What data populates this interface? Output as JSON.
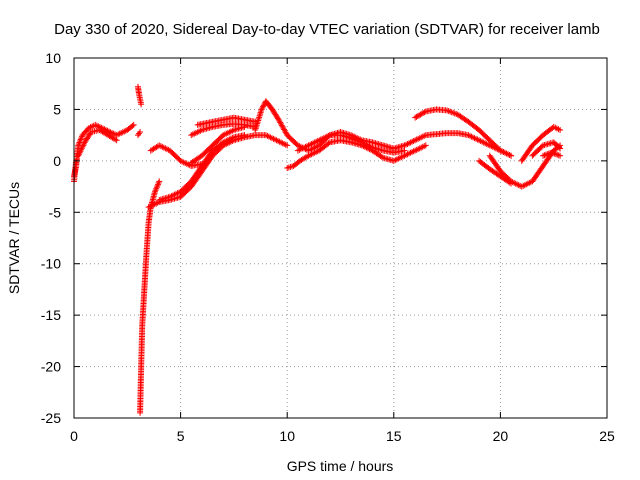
{
  "chart_data": {
    "type": "scatter",
    "title": "Day 330 of 2020, Sidereal Day-to-day VTEC variation (SDTVAR) for receiver lamb",
    "xlabel": "GPS time / hours",
    "ylabel": "SDTVAR / TECUs",
    "xlim": [
      0,
      25
    ],
    "ylim": [
      -25,
      10
    ],
    "xticks": [
      "0",
      "5",
      "10",
      "15",
      "20",
      "25"
    ],
    "yticks": [
      "10",
      "5",
      "0",
      "-5",
      "-10",
      "-15",
      "-20",
      "-25"
    ],
    "xtick_values": [
      0,
      5,
      10,
      15,
      20,
      25
    ],
    "ytick_values": [
      10,
      5,
      0,
      -5,
      -10,
      -15,
      -20,
      -25
    ],
    "grid": true,
    "marker": "+",
    "series": [
      {
        "name": "SDTVAR",
        "color": "#ff0000",
        "tracks": [
          [
            [
              0,
              -1.5
            ],
            [
              0.1,
              -0.5
            ],
            [
              0.2,
              1.5
            ],
            [
              0.4,
              2.5
            ],
            [
              0.7,
              3.2
            ],
            [
              1.0,
              3.5
            ],
            [
              1.5,
              3.0
            ],
            [
              2.0,
              2.5
            ],
            [
              2.5,
              3.0
            ],
            [
              2.8,
              3.5
            ]
          ],
          [
            [
              0.2,
              0.5
            ],
            [
              0.5,
              1.8
            ],
            [
              0.8,
              2.8
            ],
            [
              1.2,
              3.0
            ],
            [
              1.6,
              2.5
            ],
            [
              2.0,
              2.0
            ]
          ],
          [
            [
              0,
              -2.0
            ],
            [
              0.05,
              -1.0
            ],
            [
              0.1,
              0.0
            ]
          ],
          [
            [
              3.0,
              7.2
            ],
            [
              3.05,
              6.5
            ],
            [
              3.1,
              6.0
            ],
            [
              3.15,
              5.5
            ]
          ],
          [
            [
              3.0,
              2.5
            ],
            [
              3.1,
              2.8
            ]
          ],
          [
            [
              3.1,
              -24.5
            ],
            [
              3.15,
              -20.0
            ],
            [
              3.2,
              -16.0
            ],
            [
              3.3,
              -12.5
            ],
            [
              3.4,
              -9.0
            ],
            [
              3.5,
              -6.0
            ],
            [
              3.6,
              -4.5
            ],
            [
              3.8,
              -3.0
            ],
            [
              4.0,
              -2.0
            ]
          ],
          [
            [
              3.5,
              -4.5
            ],
            [
              4.0,
              -4.0
            ],
            [
              4.5,
              -3.8
            ],
            [
              5.0,
              -3.5
            ],
            [
              5.5,
              -2.5
            ],
            [
              6.0,
              -1.0
            ],
            [
              6.5,
              0.5
            ],
            [
              7.0,
              1.5
            ],
            [
              7.5,
              2.0
            ],
            [
              8.0,
              2.3
            ],
            [
              8.5,
              2.5
            ],
            [
              9.0,
              2.5
            ],
            [
              9.5,
              2.0
            ],
            [
              10.0,
              1.5
            ]
          ],
          [
            [
              4.0,
              -3.8
            ],
            [
              4.5,
              -3.5
            ],
            [
              5.0,
              -3.0
            ],
            [
              5.5,
              -2.0
            ],
            [
              6.0,
              -0.5
            ],
            [
              6.5,
              1.0
            ],
            [
              7.0,
              1.8
            ],
            [
              7.5,
              2.3
            ],
            [
              8.0,
              2.5
            ]
          ],
          [
            [
              3.6,
              1.0
            ],
            [
              4.0,
              1.5
            ],
            [
              4.5,
              1.0
            ],
            [
              5.0,
              0.0
            ],
            [
              5.5,
              -0.5
            ],
            [
              6.0,
              -0.3
            ]
          ],
          [
            [
              5.5,
              -0.2
            ],
            [
              6.0,
              0.5
            ],
            [
              6.5,
              1.5
            ],
            [
              7.0,
              2.5
            ],
            [
              7.5,
              3.0
            ],
            [
              8.0,
              3.3
            ]
          ],
          [
            [
              5.8,
              3.5
            ],
            [
              6.5,
              3.8
            ],
            [
              7.0,
              4.0
            ],
            [
              7.5,
              4.2
            ],
            [
              8.0,
              4.0
            ],
            [
              8.5,
              3.8
            ]
          ],
          [
            [
              5.5,
              2.5
            ],
            [
              6.0,
              3.0
            ],
            [
              6.5,
              3.3
            ],
            [
              7.0,
              3.5
            ],
            [
              7.5,
              3.6
            ],
            [
              8.0,
              3.5
            ],
            [
              8.5,
              3.3
            ]
          ],
          [
            [
              8.5,
              3.0
            ],
            [
              8.8,
              5.0
            ],
            [
              9.0,
              5.8
            ],
            [
              9.3,
              5.0
            ],
            [
              9.6,
              4.0
            ],
            [
              10.0,
              2.5
            ],
            [
              10.5,
              1.5
            ],
            [
              11.0,
              1.0
            ],
            [
              11.5,
              1.5
            ],
            [
              12.0,
              2.5
            ],
            [
              12.5,
              2.8
            ],
            [
              13.0,
              2.5
            ],
            [
              13.5,
              2.0
            ],
            [
              14.0,
              1.8
            ],
            [
              14.5,
              1.5
            ],
            [
              15.0,
              1.2
            ],
            [
              15.5,
              1.5
            ],
            [
              16.0,
              2.0
            ],
            [
              16.5,
              2.5
            ],
            [
              17.0,
              2.6
            ],
            [
              17.5,
              2.7
            ],
            [
              18.0,
              2.7
            ],
            [
              18.5,
              2.5
            ],
            [
              19.0,
              2.0
            ],
            [
              19.5,
              1.5
            ],
            [
              20.0,
              1.0
            ],
            [
              20.5,
              0.5
            ]
          ],
          [
            [
              10.0,
              -0.7
            ],
            [
              10.3,
              -0.5
            ],
            [
              10.6,
              0.0
            ],
            [
              11.0,
              0.5
            ],
            [
              11.5,
              1.0
            ],
            [
              12.0,
              1.8
            ],
            [
              12.5,
              2.0
            ],
            [
              13.0,
              1.8
            ],
            [
              13.5,
              1.5
            ],
            [
              14.0,
              1.0
            ],
            [
              14.5,
              0.3
            ],
            [
              15.0,
              0.0
            ],
            [
              15.5,
              0.5
            ],
            [
              16.0,
              1.0
            ],
            [
              16.5,
              1.5
            ]
          ],
          [
            [
              10.5,
              1.0
            ],
            [
              11.0,
              1.5
            ],
            [
              11.5,
              2.0
            ],
            [
              12.0,
              2.5
            ],
            [
              12.5,
              2.5
            ],
            [
              13.0,
              2.2
            ],
            [
              13.5,
              1.8
            ],
            [
              14.0,
              1.3
            ],
            [
              14.5,
              1.0
            ],
            [
              15.0,
              0.8
            ],
            [
              15.5,
              1.0
            ]
          ],
          [
            [
              16.0,
              4.2
            ],
            [
              16.5,
              4.8
            ],
            [
              17.0,
              5.0
            ],
            [
              17.5,
              4.9
            ],
            [
              18.0,
              4.5
            ],
            [
              18.5,
              3.8
            ],
            [
              19.0,
              3.0
            ],
            [
              19.5,
              2.0
            ],
            [
              20.0,
              1.0
            ],
            [
              20.5,
              0.5
            ]
          ],
          [
            [
              19.5,
              0.5
            ],
            [
              20.0,
              -1.0
            ],
            [
              20.5,
              -2.0
            ],
            [
              21.0,
              -2.5
            ],
            [
              21.5,
              -2.0
            ],
            [
              22.0,
              -0.5
            ],
            [
              22.5,
              1.0
            ],
            [
              22.8,
              1.5
            ]
          ],
          [
            [
              19.0,
              0.0
            ],
            [
              19.5,
              -0.8
            ],
            [
              20.0,
              -1.5
            ],
            [
              20.5,
              -2.2
            ]
          ],
          [
            [
              21.0,
              0.0
            ],
            [
              21.5,
              1.5
            ],
            [
              22.0,
              2.5
            ],
            [
              22.5,
              3.3
            ],
            [
              22.8,
              3.0
            ]
          ],
          [
            [
              21.5,
              0.5
            ],
            [
              22.0,
              1.5
            ],
            [
              22.5,
              1.8
            ],
            [
              22.8,
              1.2
            ]
          ],
          [
            [
              22.0,
              0.5
            ],
            [
              22.4,
              0.8
            ],
            [
              22.8,
              0.5
            ]
          ]
        ]
      }
    ]
  }
}
